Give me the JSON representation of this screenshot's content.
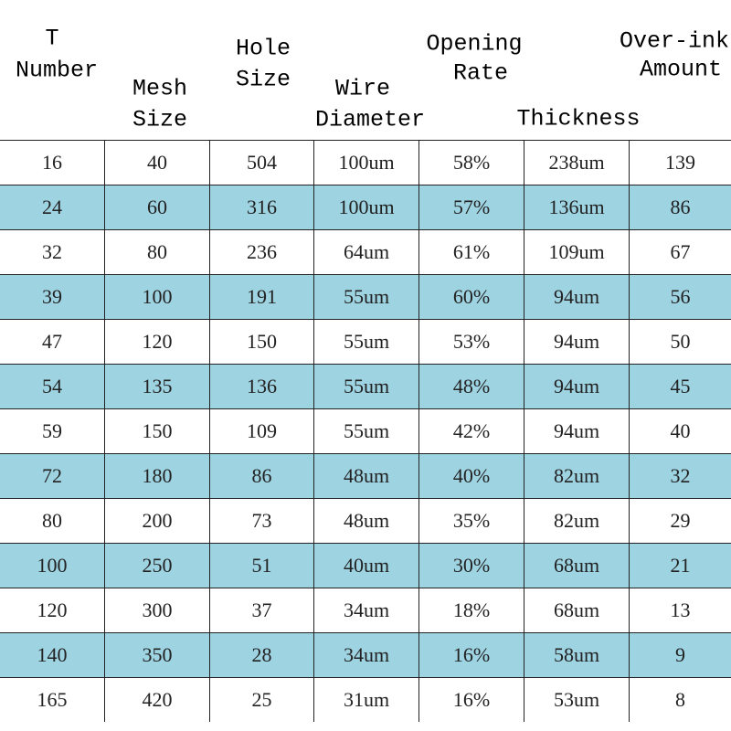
{
  "table": {
    "headers": [
      [
        "T",
        "Number"
      ],
      [
        "Mesh",
        "Size"
      ],
      [
        "Hole",
        "Size"
      ],
      [
        "Wire",
        "Diameter"
      ],
      [
        "Opening",
        "Rate"
      ],
      [
        "Thickness"
      ],
      [
        "Over-ink",
        "Amount"
      ]
    ],
    "rows": [
      [
        "16",
        "40",
        "504",
        "100um",
        "58%",
        "238um",
        "139"
      ],
      [
        "24",
        "60",
        "316",
        "100um",
        "57%",
        "136um",
        "86"
      ],
      [
        "32",
        "80",
        "236",
        "64um",
        "61%",
        "109um",
        "67"
      ],
      [
        "39",
        "100",
        "191",
        "55um",
        "60%",
        "94um",
        "56"
      ],
      [
        "47",
        "120",
        "150",
        "55um",
        "53%",
        "94um",
        "50"
      ],
      [
        "54",
        "135",
        "136",
        "55um",
        "48%",
        "94um",
        "45"
      ],
      [
        "59",
        "150",
        "109",
        "55um",
        "42%",
        "94um",
        "40"
      ],
      [
        "72",
        "180",
        "86",
        "48um",
        "40%",
        "82um",
        "32"
      ],
      [
        "80",
        "200",
        "73",
        "48um",
        "35%",
        "82um",
        "29"
      ],
      [
        "100",
        "250",
        "51",
        "40um",
        "30%",
        "68um",
        "21"
      ],
      [
        "120",
        "300",
        "37",
        "34um",
        "18%",
        "68um",
        "13"
      ],
      [
        "140",
        "350",
        "28",
        "34um",
        "16%",
        "58um",
        "9"
      ],
      [
        "165",
        "420",
        "25",
        "31um",
        "16%",
        "53um",
        "8"
      ]
    ]
  }
}
